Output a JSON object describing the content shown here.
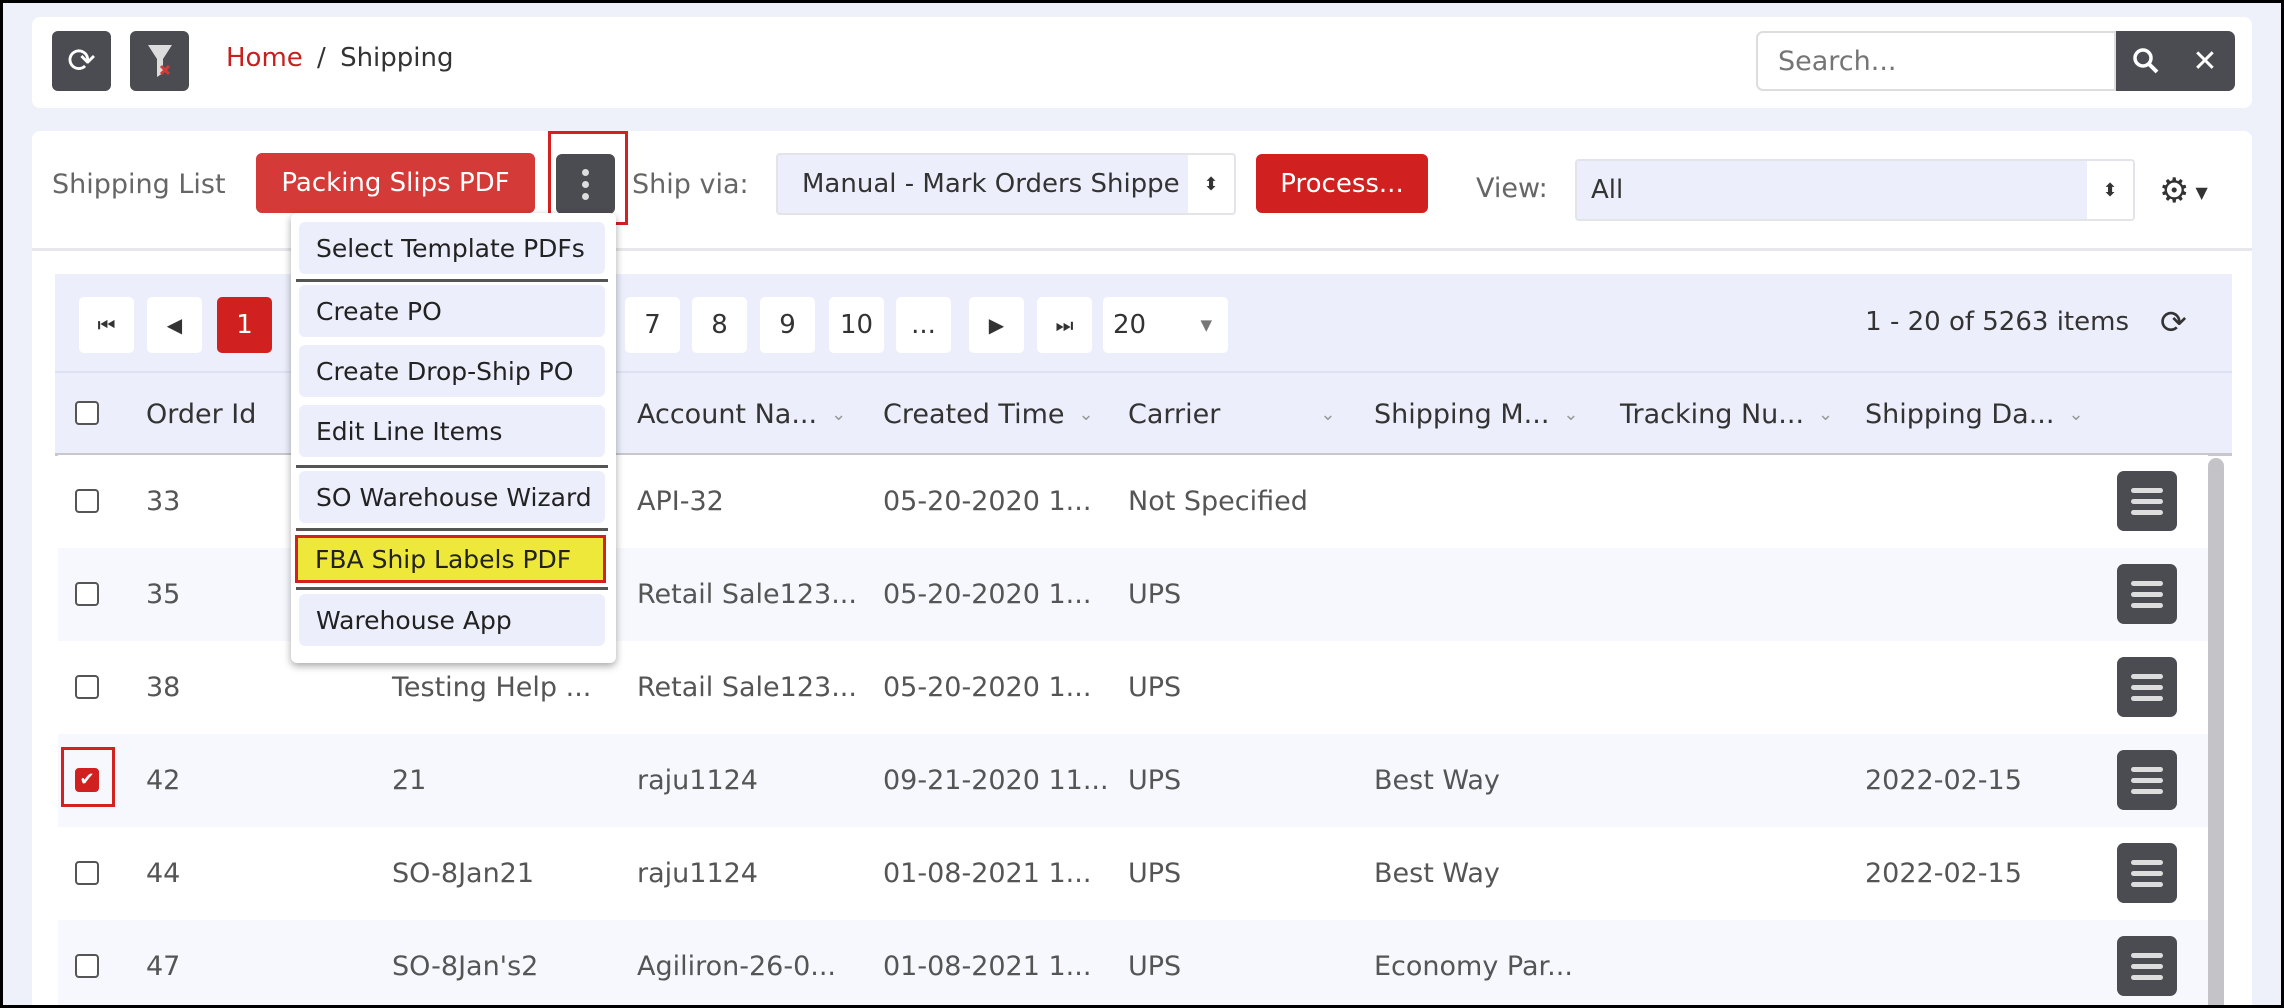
{
  "header": {
    "breadcrumb": {
      "home": "Home",
      "separator": "/",
      "current": "Shipping"
    },
    "search": {
      "placeholder": "Search...",
      "value": ""
    },
    "icons": {
      "refresh": "refresh-icon",
      "filter_clear": "filter-clear-icon",
      "search": "search-icon",
      "close": "close-icon"
    }
  },
  "toolbar": {
    "title": "Shipping List",
    "packing_slips_label": "Packing Slips PDF",
    "ship_via_label": "Ship via:",
    "ship_via_value": "Manual - Mark Orders Shippe",
    "process_label": "Process...",
    "view_label": "View:",
    "view_value": "All"
  },
  "menu": {
    "items": [
      {
        "label": "Select Template PDFs"
      },
      {
        "label": "Create PO"
      },
      {
        "label": "Create Drop-Ship PO"
      },
      {
        "label": "Edit Line Items"
      },
      {
        "label": "SO Warehouse Wizard"
      },
      {
        "label": "FBA Ship Labels PDF",
        "highlighted": true
      },
      {
        "label": "Warehouse App"
      }
    ]
  },
  "pager": {
    "current_page": "1",
    "pages": [
      "7",
      "8",
      "9",
      "10",
      "..."
    ],
    "page_size": "20",
    "summary": "1 - 20 of 5263 items"
  },
  "table": {
    "columns": [
      "Order Id",
      "",
      "Account Na...",
      "Created Time",
      "Carrier",
      "Shipping M...",
      "Tracking Nu...",
      "Shipping Da..."
    ],
    "rows": [
      {
        "checked": false,
        "order_id": "33",
        "ref": "",
        "account": "API-32",
        "created": "05-20-2020 1...",
        "carrier": "Not Specified",
        "method": "",
        "tracking": "",
        "ship_date": ""
      },
      {
        "checked": false,
        "order_id": "35",
        "ref": "",
        "account": "Retail Sale123...",
        "created": "05-20-2020 1...",
        "carrier": "UPS",
        "method": "",
        "tracking": "",
        "ship_date": ""
      },
      {
        "checked": false,
        "order_id": "38",
        "ref": "Testing Help ...",
        "account": "Retail Sale123...",
        "created": "05-20-2020 1...",
        "carrier": "UPS",
        "method": "",
        "tracking": "",
        "ship_date": ""
      },
      {
        "checked": true,
        "order_id": "42",
        "ref": "21",
        "account": "raju1124",
        "created": "09-21-2020 11...",
        "carrier": "UPS",
        "method": "Best Way",
        "tracking": "",
        "ship_date": "2022-02-15"
      },
      {
        "checked": false,
        "order_id": "44",
        "ref": "SO-8Jan21",
        "account": "raju1124",
        "created": "01-08-2021 1...",
        "carrier": "UPS",
        "method": "Best Way",
        "tracking": "",
        "ship_date": "2022-02-15"
      },
      {
        "checked": false,
        "order_id": "47",
        "ref": "SO-8Jan's2",
        "account": "Agiliron-26-0...",
        "created": "01-08-2021 1...",
        "carrier": "UPS",
        "method": "Economy Par...",
        "tracking": "",
        "ship_date": ""
      }
    ]
  },
  "colors": {
    "accent": "#c8201f",
    "dark_button": "#4b4c51",
    "highlight": "#eee83a",
    "background": "#eef0fa"
  }
}
